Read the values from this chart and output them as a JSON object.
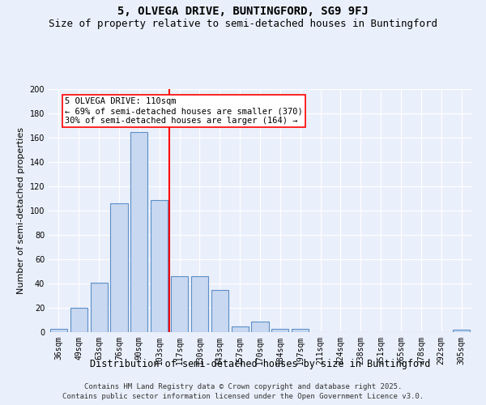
{
  "title": "5, OLVEGA DRIVE, BUNTINGFORD, SG9 9FJ",
  "subtitle": "Size of property relative to semi-detached houses in Buntingford",
  "xlabel": "Distribution of semi-detached houses by size in Buntingford",
  "ylabel": "Number of semi-detached properties",
  "categories": [
    "36sqm",
    "49sqm",
    "63sqm",
    "76sqm",
    "90sqm",
    "103sqm",
    "117sqm",
    "130sqm",
    "143sqm",
    "157sqm",
    "170sqm",
    "184sqm",
    "197sqm",
    "211sqm",
    "224sqm",
    "238sqm",
    "251sqm",
    "265sqm",
    "278sqm",
    "292sqm",
    "305sqm"
  ],
  "values": [
    3,
    20,
    41,
    106,
    165,
    109,
    46,
    46,
    35,
    5,
    9,
    3,
    3,
    0,
    0,
    0,
    0,
    0,
    0,
    0,
    2
  ],
  "bar_color": "#c8d8f0",
  "bar_edge_color": "#5b8fc9",
  "vline_x_index": 5.5,
  "vline_color": "red",
  "annotation_line1": "5 OLVEGA DRIVE: 110sqm",
  "annotation_line2": "← 69% of semi-detached houses are smaller (370)",
  "annotation_line3": "30% of semi-detached houses are larger (164) →",
  "annotation_box_color": "white",
  "annotation_box_edge_color": "red",
  "ylim": [
    0,
    200
  ],
  "yticks": [
    0,
    20,
    40,
    60,
    80,
    100,
    120,
    140,
    160,
    180,
    200
  ],
  "background_color": "#eaf0fb",
  "footer_line1": "Contains HM Land Registry data © Crown copyright and database right 2025.",
  "footer_line2": "Contains public sector information licensed under the Open Government Licence v3.0.",
  "title_fontsize": 10,
  "subtitle_fontsize": 9,
  "xlabel_fontsize": 8.5,
  "ylabel_fontsize": 8,
  "tick_fontsize": 7,
  "annotation_fontsize": 7.5,
  "footer_fontsize": 6.5
}
